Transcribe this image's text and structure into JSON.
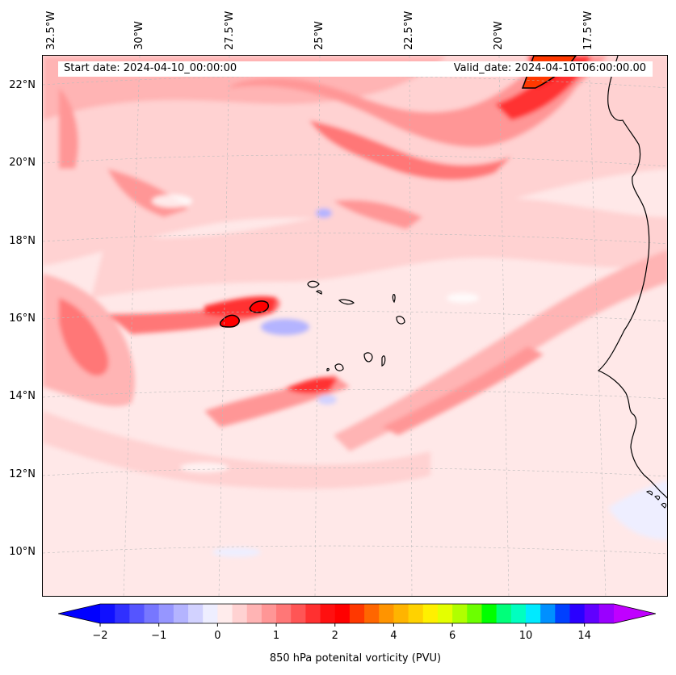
{
  "header": {
    "start_date": "Start date: 2024-04-10_00:00:00",
    "valid_date": "Valid_date: 2024-04-10T06:00:00.00"
  },
  "axes": {
    "lon_labels": [
      "32.5°W",
      "30°W",
      "27.5°W",
      "25°W",
      "22.5°W",
      "20°W",
      "17.5°W"
    ],
    "lat_labels": [
      "22°N",
      "20°N",
      "18°N",
      "16°N",
      "14°N",
      "12°N",
      "10°N"
    ]
  },
  "colorbar": {
    "title": "850 hPa potenital vorticity (PVU)",
    "ticks": [
      "−2",
      "−1",
      "0",
      "1",
      "2",
      "4",
      "6",
      "10",
      "14"
    ],
    "colors": [
      "#1010ff",
      "#3030ff",
      "#5555ff",
      "#7777ff",
      "#9696ff",
      "#b4b4ff",
      "#d2d2ff",
      "#eeeeff",
      "#ffecec",
      "#ffd2d2",
      "#ffb4b4",
      "#ff9696",
      "#ff7777",
      "#ff5555",
      "#ff3030",
      "#ff1010",
      "#ff0000",
      "#ff3800",
      "#ff6600",
      "#ff9400",
      "#ffb400",
      "#ffd200",
      "#fff000",
      "#e4ff00",
      "#b0ff00",
      "#6cff00",
      "#00ff00",
      "#00ff7a",
      "#00ffc0",
      "#00eaff",
      "#0090ff",
      "#0040ff",
      "#2a00ff",
      "#6000ff",
      "#9a00ff"
    ],
    "under_color": "#0000ff",
    "over_color": "#c000ff"
  },
  "map": {
    "background": "#ffe8e8",
    "features": [
      "Cape Verde islands",
      "West African coastline",
      "PV streamers"
    ]
  }
}
